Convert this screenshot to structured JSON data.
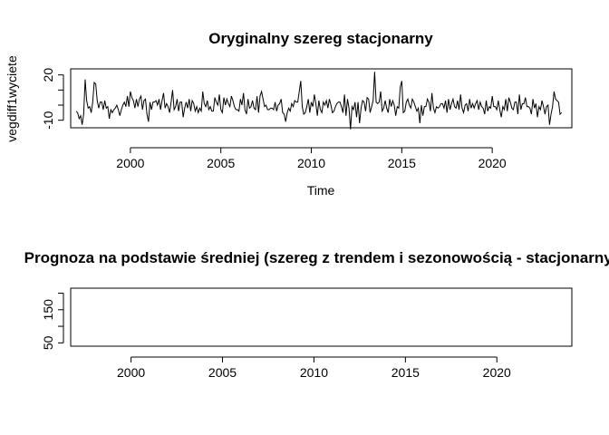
{
  "chart_data": [
    {
      "type": "line",
      "title": "Oryginalny szereg stacjonarny",
      "xlabel": "Time",
      "ylabel": "vegdiff1wyciete",
      "xlim": [
        1996.7,
        2024.4
      ],
      "ylim": [
        -15,
        24
      ],
      "xticks": [
        2000,
        2005,
        2010,
        2015,
        2020
      ],
      "yticks": [
        -10,
        20
      ],
      "series": [
        {
          "name": "vegdiff1wyciete",
          "start": 1997.0,
          "frequency": 12,
          "values": [
            -4,
            -5,
            -9,
            -7,
            -13,
            -6,
            17,
            3,
            -2,
            -1,
            -5,
            2,
            15,
            14,
            3,
            -2,
            2,
            2,
            -3,
            3,
            -2,
            -1,
            -9,
            -3,
            -5,
            -3,
            -2,
            0,
            -3,
            -7,
            -3,
            0,
            2,
            -1,
            6,
            -1,
            9,
            5,
            3,
            -2,
            4,
            -1,
            4,
            6,
            -3,
            3,
            4,
            -6,
            -11,
            2,
            -3,
            2,
            2,
            3,
            0,
            4,
            -3,
            3,
            8,
            -2,
            1,
            -1,
            -5,
            2,
            10,
            -3,
            -1,
            4,
            -4,
            2,
            2,
            -8,
            -2,
            2,
            -2,
            4,
            -4,
            3,
            1,
            -4,
            -1,
            -5,
            -2,
            -4,
            9,
            1,
            -1,
            3,
            -3,
            -1,
            -4,
            -4,
            5,
            2,
            0,
            7,
            -3,
            -5,
            5,
            0,
            4,
            1,
            -1,
            6,
            3,
            -1,
            -3,
            -3,
            -4,
            4,
            0,
            8,
            -3,
            -6,
            4,
            -2,
            -1,
            3,
            -2,
            -3,
            6,
            -5,
            6,
            9,
            4,
            -1,
            0,
            -3,
            -3,
            -2,
            -2,
            -3,
            2,
            -4,
            0,
            1,
            4,
            -5,
            -6,
            -11,
            -5,
            -2,
            -4,
            1,
            -1,
            3,
            2,
            2,
            9,
            16,
            -1,
            -6,
            -5,
            -1,
            4,
            -5,
            2,
            -1,
            7,
            1,
            -7,
            3,
            -3,
            -5,
            2,
            0,
            3,
            -2,
            4,
            0,
            -5,
            -4,
            -1,
            1,
            2,
            2,
            -1,
            -5,
            7,
            -7,
            4,
            -2,
            -16,
            -1,
            -3,
            2,
            -8,
            2,
            -12,
            -2,
            3,
            2,
            -4,
            5,
            4,
            -5,
            -1,
            3,
            22,
            2,
            1,
            2,
            9,
            -4,
            -2,
            3,
            -2,
            -5,
            4,
            -1,
            3,
            0,
            -7,
            -1,
            -2,
            12,
            16,
            -5,
            -4,
            2,
            4,
            0,
            -2,
            4,
            2,
            -1,
            -4,
            -2,
            -12,
            0,
            -7,
            -1,
            -1,
            4,
            2,
            -4,
            8,
            -2,
            -5,
            -1,
            -2,
            -1,
            1,
            1,
            -2,
            3,
            -5,
            4,
            -3,
            1,
            4,
            -1,
            -2,
            3,
            -3,
            7,
            -2,
            -5,
            0,
            1,
            -4,
            4,
            -2,
            1,
            -2,
            1,
            3,
            -3,
            2,
            -1,
            -2,
            -6,
            3,
            -4,
            -1,
            -2,
            6,
            -1,
            -1,
            -3,
            3,
            -3,
            -8,
            -1,
            -3,
            4,
            -4,
            5,
            2,
            -2,
            -3,
            2,
            2,
            -6,
            7,
            -3,
            1,
            1,
            5,
            -1,
            -1,
            -2,
            -6,
            4,
            -2,
            1,
            -8,
            -1,
            -3,
            3,
            -1,
            -6,
            -1,
            0,
            -13,
            -6,
            -1,
            9,
            4,
            3,
            2,
            -6,
            -5
          ]
        }
      ]
    },
    {
      "type": "line",
      "title": "Prognoza na podstawie średniej (szereg z trendem i sezonowością - stacjonarny)",
      "xlabel": "",
      "ylabel": "",
      "xlim": [
        1996.7,
        2024.1
      ],
      "ylim": [
        40,
        215
      ],
      "xticks": [
        2000,
        2005,
        2010,
        2015,
        2020
      ],
      "yticks": [
        50,
        150
      ],
      "series": []
    }
  ]
}
